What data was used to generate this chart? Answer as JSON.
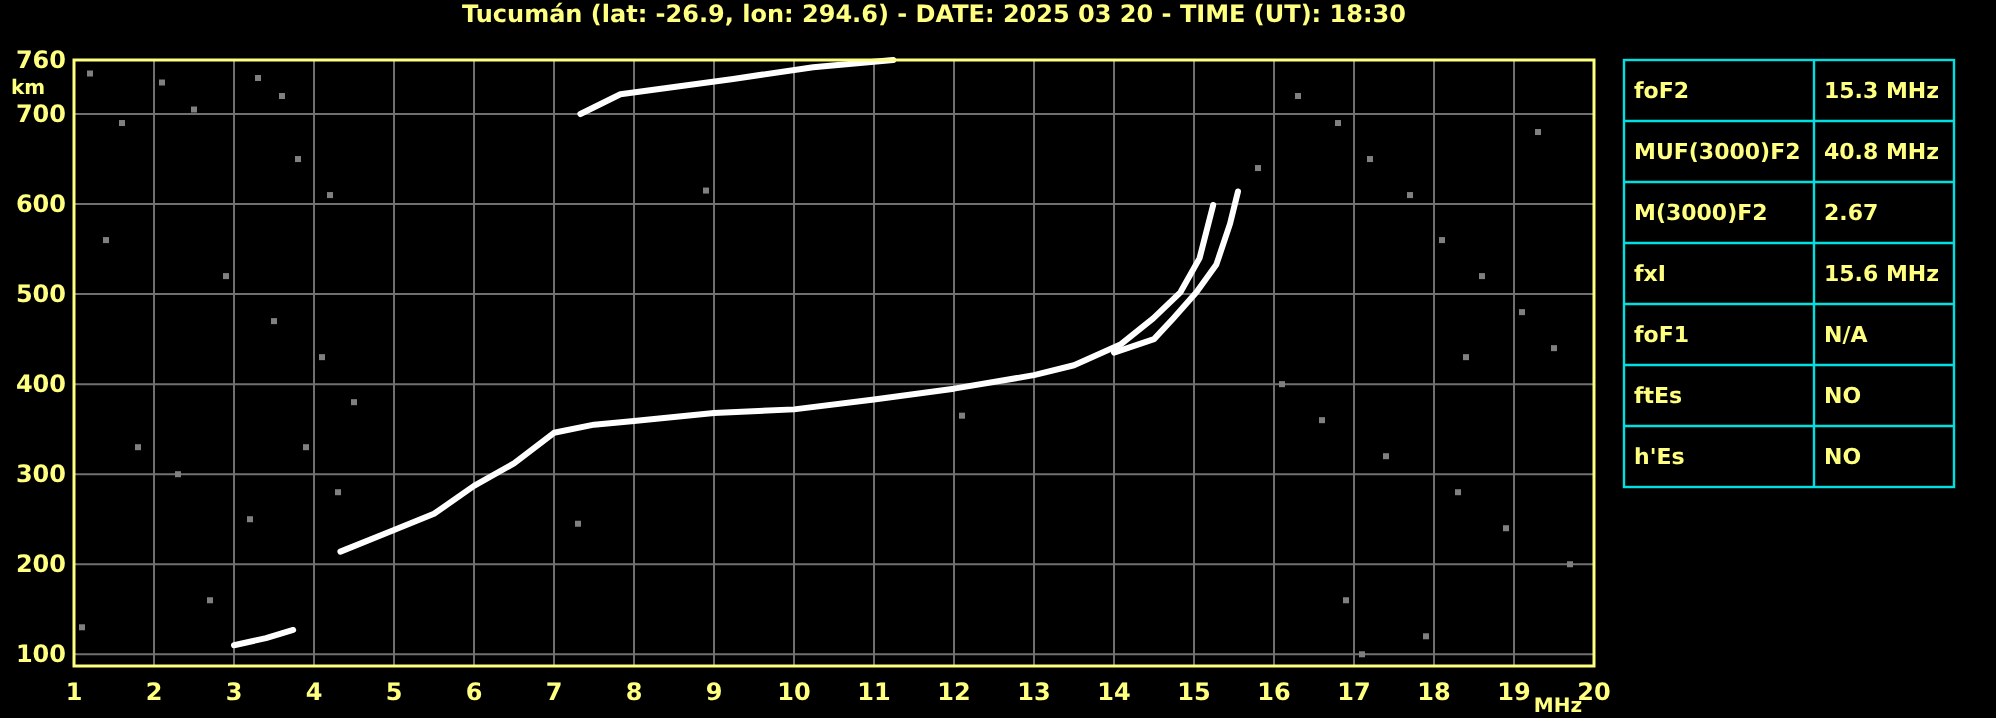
{
  "chart_data": [
    {
      "type": "line",
      "title": "Tucumán (lat: -26.9, lon: 294.6) - DATE: 2025 03 20 - TIME (UT): 18:30",
      "xlabel": "MHz",
      "ylabel": "km",
      "xlim": [
        1,
        20
      ],
      "ylim": [
        87,
        760
      ],
      "xticks": [
        1,
        2,
        3,
        4,
        5,
        6,
        7,
        8,
        9,
        10,
        11,
        12,
        13,
        14,
        15,
        16,
        17,
        18,
        19,
        20
      ],
      "yticks": [
        100,
        200,
        300,
        400,
        500,
        600,
        700,
        760
      ],
      "grid": true,
      "marker": "none",
      "line_style": "solid",
      "series": [
        {
          "color": "#ffffff",
          "x": [
            4.33,
            5.0,
            5.5,
            6.0,
            6.5,
            7.0,
            7.5,
            8.0,
            9.0,
            10.0,
            11.0,
            12.0,
            13.0,
            13.5,
            14.08,
            14.49,
            14.83,
            15.07,
            15.24
          ],
          "values": [
            214,
            238,
            256,
            287,
            312,
            346,
            355,
            359,
            368,
            372,
            383,
            395,
            410,
            421,
            444,
            473,
            502,
            540,
            599
          ]
        },
        {
          "color": "#ffffff",
          "x": [
            14.0,
            14.5,
            14.74,
            15.03,
            15.28,
            15.45,
            15.55
          ],
          "values": [
            435,
            450,
            473,
            502,
            533,
            578,
            614
          ]
        },
        {
          "color": "#ffffff",
          "x": [
            3.0,
            3.4,
            3.74
          ],
          "values": [
            110,
            118,
            127
          ]
        },
        {
          "color": "#ffffff",
          "x": [
            7.33,
            7.83,
            9.24,
            10.24,
            11.24
          ],
          "values": [
            700,
            722,
            739,
            752,
            760
          ]
        },
        {
          "type": "scatter",
          "color": "#808080",
          "marker": "square",
          "x": [
            1.2,
            1.6,
            2.1,
            2.5,
            3.3,
            3.6,
            3.8,
            4.2,
            1.4,
            2.9,
            3.5,
            4.1,
            4.5,
            1.8,
            2.3,
            3.2,
            3.9,
            4.3,
            1.1,
            2.7,
            16.3,
            16.8,
            17.2,
            17.7,
            18.1,
            18.6,
            19.1,
            19.5,
            16.1,
            16.6,
            17.4,
            18.3,
            18.9,
            19.7,
            16.9,
            17.9,
            18.4,
            19.3,
            15.8,
            17.1,
            12.1,
            8.9,
            7.3
          ],
          "values": [
            745,
            690,
            735,
            705,
            740,
            720,
            650,
            610,
            560,
            520,
            470,
            430,
            380,
            330,
            300,
            250,
            330,
            280,
            130,
            160,
            720,
            690,
            650,
            610,
            560,
            520,
            480,
            440,
            400,
            360,
            320,
            280,
            240,
            200,
            160,
            120,
            430,
            680,
            640,
            100,
            365,
            615,
            245
          ]
        }
      ]
    },
    {
      "type": "other",
      "categories": [
        "foF2",
        "MUF(3000)F2",
        "M(3000)F2",
        "fxI",
        "foF1",
        "ftEs",
        "h'Es"
      ],
      "value_labels": [
        "15.3 MHz",
        "40.8 MHz",
        "2.67",
        "15.6 MHz",
        "N/A",
        "NO",
        "NO"
      ]
    }
  ]
}
